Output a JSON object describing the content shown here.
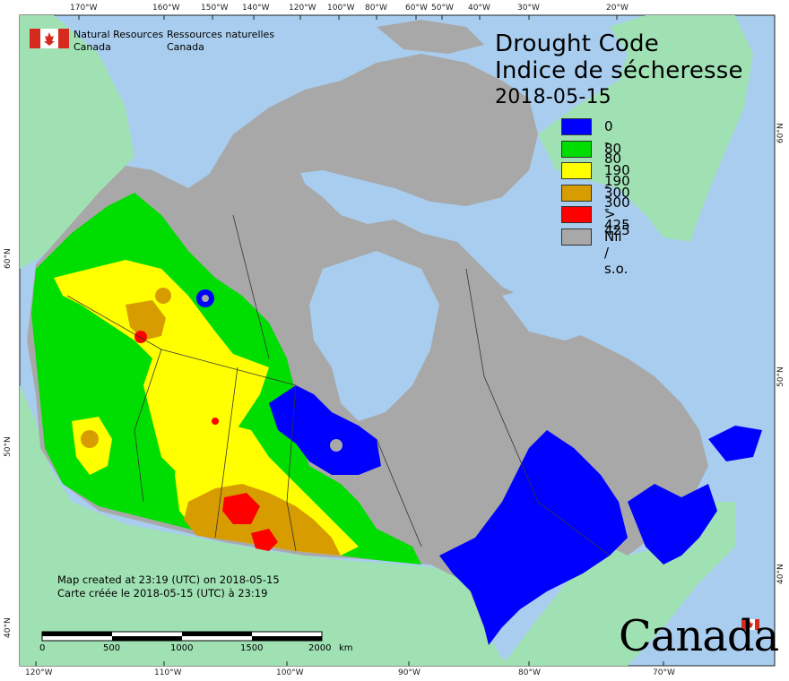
{
  "org": {
    "en_line1": "Natural Resources",
    "en_line2": "Canada",
    "fr_line1": "Ressources naturelles",
    "fr_line2": "Canada"
  },
  "title": {
    "en": "Drought Code",
    "fr": "Indice de sécheresse",
    "date": "2018-05-15"
  },
  "legend": [
    {
      "label": "0 - 80",
      "color": "#0000ff"
    },
    {
      "label": "80 - 190",
      "color": "#00dd00"
    },
    {
      "label": "190 - 300",
      "color": "#ffff00"
    },
    {
      "label": "300 - 425",
      "color": "#d79d00"
    },
    {
      "label": "> 425",
      "color": "#ff0000"
    },
    {
      "label": "Nil / s.o.",
      "color": "#a8a8a8"
    }
  ],
  "graticule": {
    "top_labels": [
      "170°W",
      "160°W",
      "150°W",
      "140°W",
      "120°W",
      "100°W",
      "80°W",
      "60°W",
      "50°W",
      "40°W",
      "30°W",
      "20°W"
    ],
    "bottom_labels": [
      "120°W",
      "110°W",
      "100°W",
      "90°W",
      "80°W",
      "70°W"
    ],
    "left_labels": [
      "60°N",
      "50°N",
      "40°N"
    ],
    "right_labels": [
      "60°N",
      "50°N",
      "40°N"
    ]
  },
  "credit": {
    "en": "Map created at 23:19 (UTC) on 2018-05-15",
    "fr": "Carte créée le 2018-05-15 (UTC) à 23:19"
  },
  "scale": {
    "labels": [
      "0",
      "500",
      "1000",
      "1500",
      "2000"
    ],
    "unit": "km"
  },
  "wordmark": "Canada",
  "colors": {
    "ocean": "#a8cdee",
    "foreign_land": "#a0e1b4",
    "nil": "#a8a8a8"
  }
}
